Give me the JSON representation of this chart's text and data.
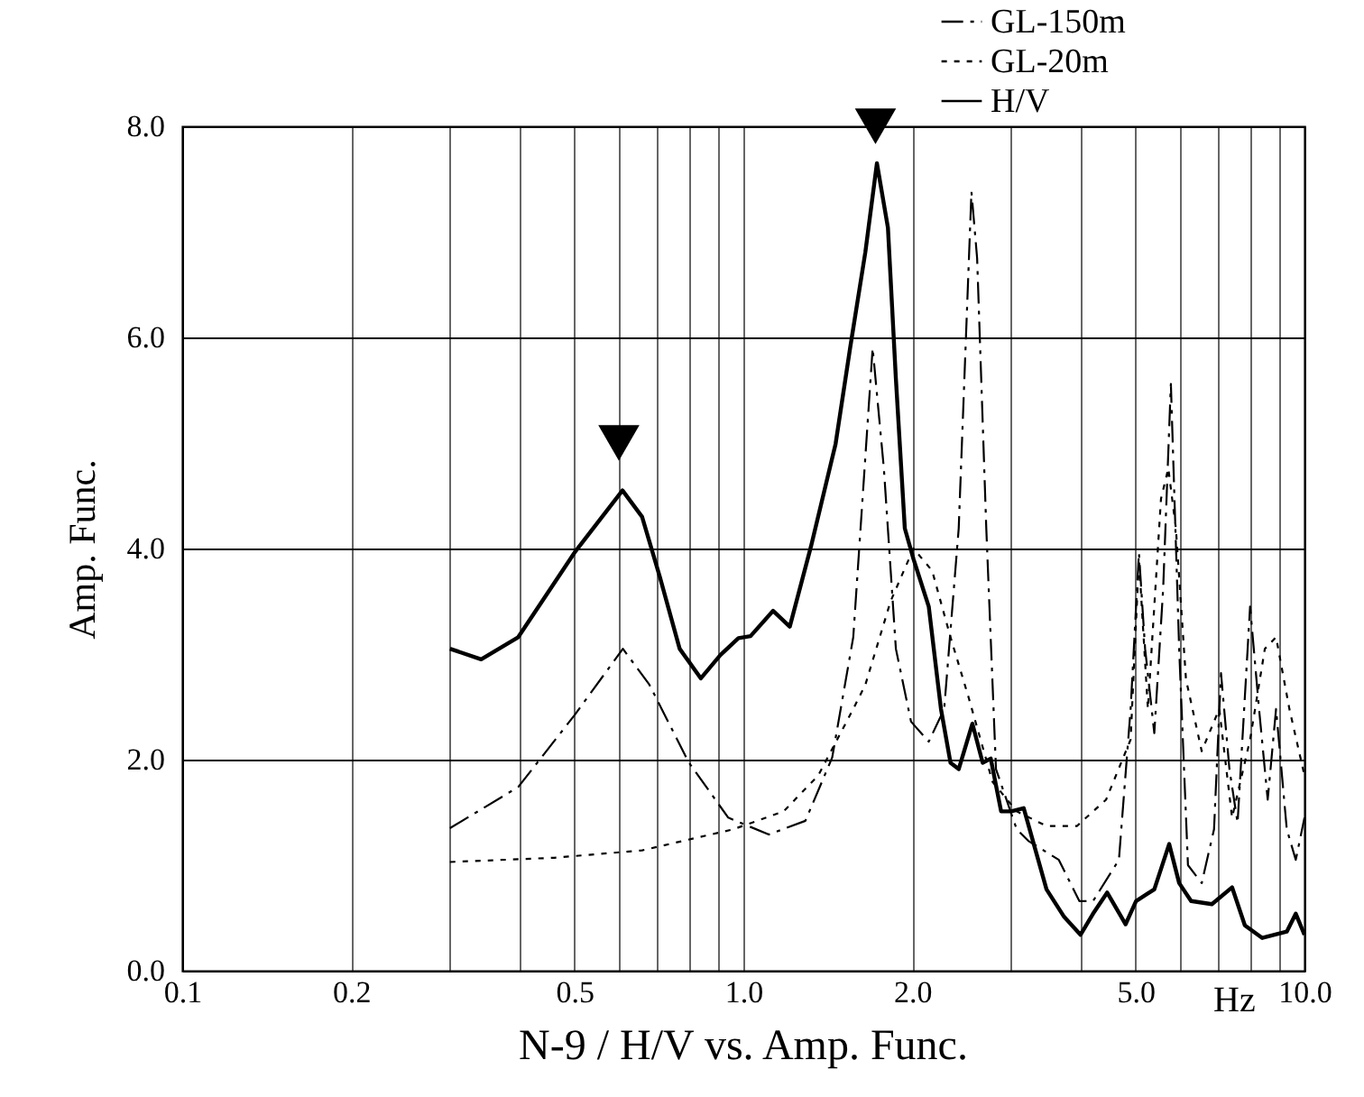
{
  "chart_data": {
    "type": "line",
    "title": "N-9 / H/V vs. Amp. Func.",
    "xlabel": "Hz",
    "ylabel": "Amp. Func.",
    "log": "x",
    "grid": true,
    "legend": "top right",
    "xlim": [
      0.1,
      10
    ],
    "ylim": [
      0,
      8
    ],
    "xticks": [
      {
        "value": 0.1,
        "label": "0.1"
      },
      {
        "value": 0.2,
        "label": "0.2"
      },
      {
        "value": 0.3,
        "label": null
      },
      {
        "value": 0.4,
        "label": null
      },
      {
        "value": 0.5,
        "label": "0.5"
      },
      {
        "value": 0.6,
        "label": null
      },
      {
        "value": 0.7,
        "label": null
      },
      {
        "value": 0.8,
        "label": null
      },
      {
        "value": 0.9,
        "label": null
      },
      {
        "value": 1,
        "label": "1.0"
      },
      {
        "value": 2,
        "label": "2.0"
      },
      {
        "value": 3,
        "label": null
      },
      {
        "value": 4,
        "label": null
      },
      {
        "value": 5,
        "label": "5.0"
      },
      {
        "value": 6,
        "label": null
      },
      {
        "value": 7,
        "label": null
      },
      {
        "value": 8,
        "label": null
      },
      {
        "value": 9,
        "label": null
      },
      {
        "value": 10,
        "label": "10.0"
      }
    ],
    "yticks": [
      {
        "value": 0,
        "label": "0.0"
      },
      {
        "value": 2,
        "label": "2.0"
      },
      {
        "value": 4,
        "label": "4.0"
      },
      {
        "value": 6,
        "label": "6.0"
      },
      {
        "value": 8,
        "label": "8.0"
      }
    ],
    "series": [
      {
        "name": "GL-150m",
        "color": "#000000",
        "line_style": "dashed",
        "x": [
          0.3,
          0.397,
          0.5,
          0.61,
          0.68,
          0.8,
          0.94,
          1.11,
          1.29,
          1.44,
          1.57,
          1.7,
          1.78,
          1.87,
          1.99,
          2.14,
          2.28,
          2.42,
          2.55,
          2.61,
          2.71,
          2.82,
          3.07,
          3.22,
          3.65,
          3.97,
          4.2,
          4.67,
          4.9,
          5.07,
          5.2,
          5.4,
          5.6,
          5.78,
          5.98,
          6.2,
          6.56,
          6.9,
          7.1,
          7.35,
          7.6,
          8.0,
          8.3,
          8.6,
          8.9,
          9.3,
          9.65,
          10
        ],
        "values": [
          1.35,
          1.74,
          2.42,
          3.05,
          2.71,
          1.97,
          1.45,
          1.29,
          1.42,
          2.02,
          3.16,
          5.9,
          4.76,
          3.05,
          2.36,
          2.17,
          2.48,
          4.19,
          7.38,
          6.75,
          4.19,
          1.91,
          1.34,
          1.23,
          1.05,
          0.66,
          0.66,
          1.05,
          2.48,
          3.96,
          3.05,
          2.25,
          3.62,
          5.56,
          3.05,
          1.0,
          0.83,
          1.34,
          2.82,
          1.91,
          1.4,
          3.45,
          2.48,
          1.62,
          2.48,
          1.34,
          1.05,
          1.45
        ]
      },
      {
        "name": "GL-20m",
        "color": "#000000",
        "line_style": "dotted",
        "x": [
          0.3,
          0.46,
          0.66,
          0.96,
          1.18,
          1.36,
          1.57,
          1.65,
          1.83,
          2.01,
          2.17,
          2.34,
          2.52,
          2.78,
          3.07,
          3.47,
          3.93,
          4.43,
          4.9,
          5.07,
          5.26,
          5.55,
          5.72,
          5.9,
          6.15,
          6.56,
          7.05,
          7.43,
          8.0,
          8.5,
          8.9,
          9.4,
          10
        ],
        "values": [
          1.03,
          1.07,
          1.14,
          1.34,
          1.51,
          1.85,
          2.48,
          2.71,
          3.5,
          4.0,
          3.79,
          3.16,
          2.59,
          1.79,
          1.51,
          1.37,
          1.37,
          1.62,
          2.19,
          3.9,
          2.48,
          4.47,
          4.76,
          4.19,
          2.76,
          2.08,
          2.48,
          1.45,
          2.19,
          3.05,
          3.16,
          2.48,
          1.85
        ]
      },
      {
        "name": "H/V",
        "color": "#000000",
        "line_style": "solid",
        "x": [
          0.3,
          0.341,
          0.397,
          0.5,
          0.609,
          0.66,
          0.71,
          0.77,
          0.84,
          0.91,
          0.98,
          1.03,
          1.13,
          1.21,
          1.32,
          1.46,
          1.55,
          1.65,
          1.73,
          1.81,
          1.87,
          1.94,
          2.01,
          2.14,
          2.25,
          2.34,
          2.42,
          2.56,
          2.67,
          2.76,
          2.88,
          3.0,
          3.16,
          3.47,
          3.73,
          3.99,
          4.2,
          4.45,
          4.8,
          5.01,
          5.4,
          5.74,
          5.98,
          6.28,
          6.84,
          7.43,
          7.83,
          8.41,
          9.3,
          9.65,
          10
        ],
        "values": [
          3.05,
          2.95,
          3.16,
          3.96,
          4.55,
          4.3,
          3.73,
          3.05,
          2.77,
          2.99,
          3.15,
          3.17,
          3.41,
          3.26,
          4.02,
          4.99,
          5.9,
          6.81,
          7.65,
          7.04,
          5.61,
          4.19,
          3.9,
          3.45,
          2.48,
          1.97,
          1.91,
          2.34,
          1.97,
          2.01,
          1.51,
          1.51,
          1.54,
          0.77,
          0.51,
          0.34,
          0.54,
          0.74,
          0.44,
          0.66,
          0.77,
          1.2,
          0.83,
          0.66,
          0.63,
          0.79,
          0.43,
          0.31,
          0.37,
          0.54,
          0.34
        ]
      },
      {
        "type": "scatter",
        "marker": "triangle",
        "color": "#000000",
        "x": [
          0.6,
          1.72
        ],
        "values": [
          5.0,
          8.0
        ]
      }
    ]
  }
}
